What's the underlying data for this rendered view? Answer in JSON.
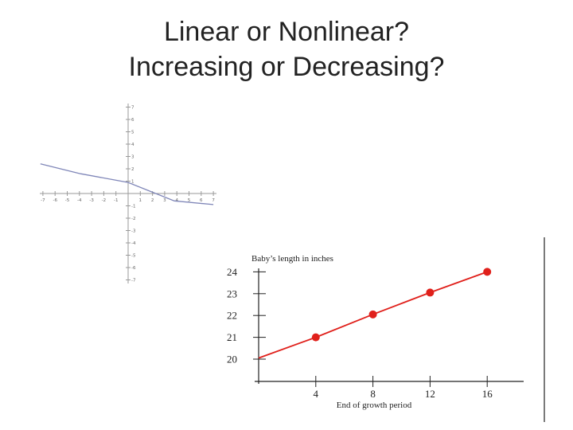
{
  "slide": {
    "title_line1": "Linear or Nonlinear?",
    "title_line2": "Increasing or Decreasing?"
  },
  "chart_data": [
    {
      "type": "line",
      "title": "",
      "xlabel": "",
      "ylabel": "",
      "xlim": [
        -7,
        7
      ],
      "ylim": [
        -7,
        7
      ],
      "x_ticks": [
        -7,
        -6,
        -5,
        -4,
        -3,
        -2,
        -1,
        1,
        2,
        3,
        4,
        5,
        6,
        7
      ],
      "y_ticks": [
        7,
        6,
        5,
        4,
        3,
        2,
        1,
        -1,
        -2,
        -3,
        -4,
        -5,
        -6,
        -7
      ],
      "grid": false,
      "series": [
        {
          "points": [
            [
              -7.2,
              2.4
            ],
            [
              -3.9,
              1.6
            ],
            [
              0,
              0.9
            ],
            [
              3.8,
              -0.6
            ],
            [
              7.0,
              -0.9
            ]
          ],
          "color": "#7f86b8"
        }
      ]
    },
    {
      "type": "line",
      "title": "Baby’s length in inches",
      "xlabel": "End of growth period",
      "ylabel": "",
      "x_ticks": [
        4,
        8,
        12,
        16
      ],
      "y_ticks": [
        24,
        23,
        22,
        21,
        20
      ],
      "grid": false,
      "color": "#e0201b",
      "series": [
        {
          "x": [
            0,
            4,
            8,
            12,
            16
          ],
          "y": [
            20.05,
            21.0,
            22.05,
            23.05,
            24.0
          ]
        }
      ],
      "markers_at": [
        4,
        8,
        12,
        16
      ]
    }
  ]
}
